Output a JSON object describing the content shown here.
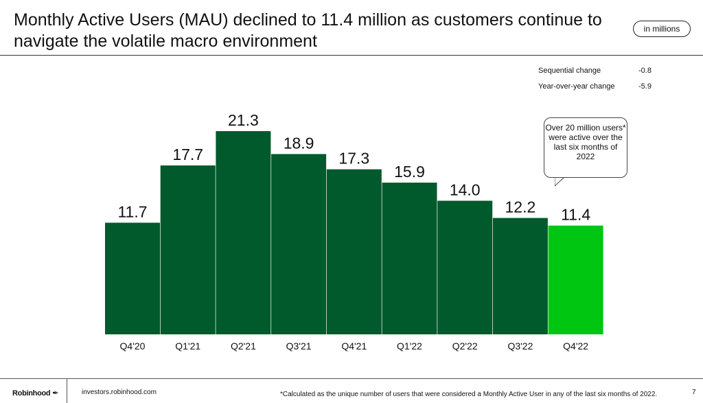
{
  "header": {
    "title": "Monthly Active Users (MAU) declined to 11.4 million as customers continue to navigate the volatile macro environment",
    "unit_badge": "in millions"
  },
  "stats": [
    {
      "label": "Sequential change",
      "value": "-0.8"
    },
    {
      "label": "Year-over-year change",
      "value": "-5.9"
    }
  ],
  "callout": {
    "text": "Over 20 million users* were active over the last six months of 2022"
  },
  "chart_data": {
    "type": "bar",
    "title": "",
    "xlabel": "",
    "ylabel": "",
    "categories": [
      "Q4'20",
      "Q1'21",
      "Q2'21",
      "Q3'21",
      "Q4'21",
      "Q1'22",
      "Q2'22",
      "Q3'22",
      "Q4'22"
    ],
    "values": [
      11.7,
      17.7,
      21.3,
      18.9,
      17.3,
      15.9,
      14.0,
      12.2,
      11.4
    ],
    "labels": [
      "11.7",
      "17.7",
      "21.3",
      "18.9",
      "17.3",
      "15.9",
      "14.0",
      "12.2",
      "11.4"
    ],
    "ylim": [
      0,
      21.3
    ],
    "grid": false,
    "colors": {
      "bar": "#005a2b",
      "highlight": "#00c612"
    },
    "highlight_index": 8
  },
  "footer": {
    "brand": "Robinhood",
    "url": "investors.robinhood.com",
    "footnote": "*Calculated as the unique number of users that were considered a Monthly Active User in any of the last six months of 2022.",
    "page_number": "7"
  }
}
